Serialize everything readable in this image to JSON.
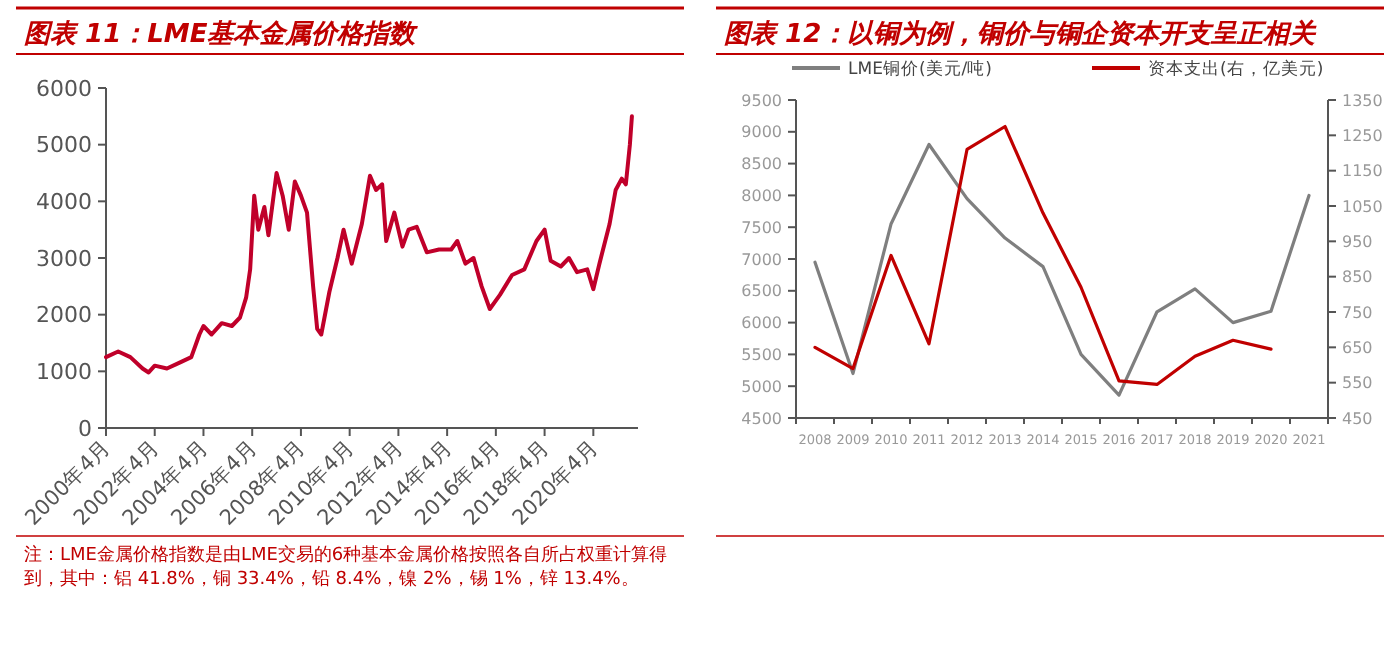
{
  "chart_data": [
    {
      "type": "line",
      "title": "图表 11：LME基本金属价格指数",
      "color": "#c0002a",
      "grid": false,
      "legend": false,
      "x": [
        "2000-04",
        "2000-10",
        "2001-04",
        "2001-10",
        "2002-01",
        "2002-04",
        "2002-10",
        "2003-04",
        "2003-10",
        "2004-02",
        "2004-04",
        "2004-08",
        "2005-01",
        "2005-06",
        "2005-10",
        "2006-01",
        "2006-03",
        "2006-05",
        "2006-07",
        "2006-10",
        "2006-12",
        "2007-04",
        "2007-07",
        "2007-10",
        "2008-01",
        "2008-04",
        "2008-07",
        "2008-10",
        "2008-12",
        "2009-02",
        "2009-06",
        "2009-10",
        "2010-01",
        "2010-05",
        "2010-10",
        "2011-02",
        "2011-05",
        "2011-08",
        "2011-10",
        "2012-02",
        "2012-06",
        "2012-09",
        "2013-01",
        "2013-06",
        "2013-12",
        "2014-06",
        "2014-09",
        "2015-01",
        "2015-05",
        "2015-09",
        "2016-01",
        "2016-06",
        "2016-12",
        "2017-06",
        "2017-12",
        "2018-04",
        "2018-07",
        "2018-12",
        "2019-04",
        "2019-08",
        "2020-01",
        "2020-04",
        "2020-07",
        "2020-12",
        "2021-03",
        "2021-06",
        "2021-08",
        "2021-10",
        "2021-11"
      ],
      "values": [
        1250,
        1350,
        1250,
        1050,
        980,
        1100,
        1050,
        1150,
        1250,
        1650,
        1800,
        1650,
        1850,
        1800,
        1950,
        2300,
        2800,
        4100,
        3500,
        3900,
        3400,
        4500,
        4100,
        3500,
        4350,
        4100,
        3800,
        2500,
        1750,
        1650,
        2400,
        3000,
        3500,
        2900,
        3600,
        4450,
        4200,
        4300,
        3300,
        3800,
        3200,
        3500,
        3550,
        3100,
        3150,
        3150,
        3300,
        2900,
        3000,
        2500,
        2100,
        2350,
        2700,
        2800,
        3300,
        3500,
        2950,
        2850,
        3000,
        2750,
        2800,
        2450,
        2900,
        3600,
        4200,
        4400,
        4300,
        5000,
        5500
      ],
      "xlim": [
        "2000-04",
        "2022-02"
      ],
      "xticks": [
        {
          "value": "2000-04",
          "label": "2000年4月"
        },
        {
          "value": "2002-04",
          "label": "2002年4月"
        },
        {
          "value": "2004-04",
          "label": "2004年4月"
        },
        {
          "value": "2006-04",
          "label": "2006年4月"
        },
        {
          "value": "2008-04",
          "label": "2008年4月"
        },
        {
          "value": "2010-04",
          "label": "2010年4月"
        },
        {
          "value": "2012-04",
          "label": "2012年4月"
        },
        {
          "value": "2014-04",
          "label": "2014年4月"
        },
        {
          "value": "2016-04",
          "label": "2016年4月"
        },
        {
          "value": "2018-04",
          "label": "2018年4月"
        },
        {
          "value": "2020-04",
          "label": "2020年4月"
        }
      ],
      "ylim": [
        0,
        6000
      ],
      "yticks": [
        0,
        1000,
        2000,
        3000,
        4000,
        5000,
        6000
      ],
      "annotations": [
        "注：LME金属价格指数是由LME交易的6种基本金属价格按照各自所占权重计算得到，其中：铝 41.8%，铜 33.4%，铅 8.4%，镍 2%，锡 1%，锌 13.4%。"
      ]
    },
    {
      "type": "line",
      "title": "图表 12：以铜为例，铜价与铜企资本开支呈正相关",
      "grid": false,
      "legend": "top",
      "categories": [
        "2008",
        "2009",
        "2010",
        "2011",
        "2012",
        "2013",
        "2014",
        "2015",
        "2016",
        "2017",
        "2018",
        "2019",
        "2020",
        "2021"
      ],
      "series": [
        {
          "name": "LME铜价(美元/吨)",
          "color": "#7f7f7f",
          "values": [
            6950,
            5200,
            7550,
            8800,
            7950,
            7330,
            6880,
            5500,
            4860,
            6170,
            6530,
            6000,
            6180,
            8000
          ]
        },
        {
          "name": "资本支出(右，亿美元)",
          "color": "#c00000",
          "axis": "y2",
          "values": [
            650,
            590,
            910,
            660,
            1210,
            1275,
            1030,
            820,
            555,
            545,
            625,
            670,
            645,
            null
          ]
        }
      ],
      "ylim": [
        4500,
        9500
      ],
      "yticks": [
        4500,
        5000,
        5500,
        6000,
        6500,
        7000,
        7500,
        8000,
        8500,
        9000,
        9500
      ],
      "y2lim": [
        450,
        1350
      ],
      "y2ticks": [
        450,
        550,
        650,
        750,
        850,
        950,
        1050,
        1150,
        1250,
        1350
      ]
    }
  ]
}
